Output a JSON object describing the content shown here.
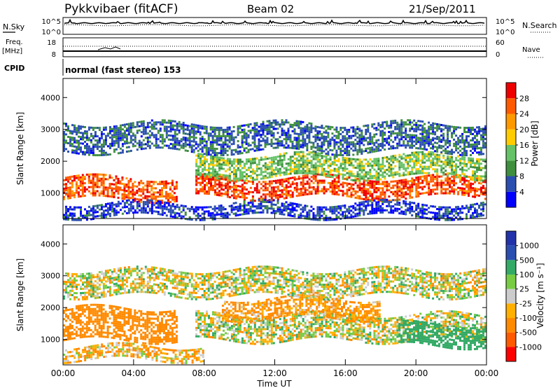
{
  "header": {
    "station": "Pykkvibaer (fitACF)",
    "beam": "Beam 02",
    "date": "21/Sep/2011"
  },
  "nsky_panel": {
    "left_label": "N.Sky",
    "right_label": "N.Search",
    "ticks": [
      "10^5",
      "10^0"
    ]
  },
  "freq_panel": {
    "left_label_1": "Freq.",
    "left_label_2": "[MHz]",
    "left_ticks": [
      "18",
      "8"
    ],
    "right_ticks": [
      "60",
      "0"
    ],
    "right_label": "Nave"
  },
  "cpid_panel": {
    "label": "CPID",
    "text": "normal (fast stereo) 153"
  },
  "colors": {
    "power_scale": [
      "#0000ff",
      "#2b4fb0",
      "#3f8f3f",
      "#66c266",
      "#ffcc00",
      "#ff9900",
      "#ff5a00",
      "#ee0000"
    ],
    "velocity_scale": [
      "#ff0000",
      "#ff5a00",
      "#ff8a00",
      "#ffb000",
      "#cccccc",
      "#77cc44",
      "#33aa66",
      "#2b4fb0",
      "#2233aa"
    ]
  },
  "chart_data": [
    {
      "type": "heatmap",
      "title": "",
      "xlabel": "Time UT",
      "ylabel": "Slant Range [km]",
      "x_ticks": [
        "00:00",
        "04:00",
        "08:00",
        "12:00",
        "16:00",
        "20:00",
        "00:00"
      ],
      "y_ticks": [
        1000,
        2000,
        3000,
        4000
      ],
      "ylim": [
        200,
        4600
      ],
      "colorbar": {
        "label": "Power [dB]",
        "ticks": [
          4,
          8,
          12,
          16,
          20,
          24,
          28
        ],
        "range": [
          0,
          32
        ]
      },
      "bands": [
        {
          "t": [
            0,
            6.5
          ],
          "range": [
            800,
            1500
          ],
          "value": 26
        },
        {
          "t": [
            7.5,
            24
          ],
          "range": [
            900,
            1500
          ],
          "value": 27
        },
        {
          "t": [
            7.5,
            24
          ],
          "range": [
            1500,
            2200
          ],
          "value": 14
        },
        {
          "t": [
            0,
            24
          ],
          "range": [
            2300,
            3200
          ],
          "value": 7
        },
        {
          "t": [
            0,
            24
          ],
          "range": [
            300,
            700
          ],
          "value": 5
        }
      ]
    },
    {
      "type": "heatmap",
      "title": "",
      "xlabel": "Time UT",
      "ylabel": "Slant Range [km]",
      "x_ticks": [
        "00:00",
        "04:00",
        "08:00",
        "12:00",
        "16:00",
        "20:00",
        "00:00"
      ],
      "y_ticks": [
        1000,
        2000,
        3000,
        4000
      ],
      "ylim": [
        200,
        4600
      ],
      "colorbar": {
        "label": "Velocity [m s⁻¹]",
        "ticks": [
          1000,
          500,
          100,
          25,
          -25,
          -100,
          -500,
          -1000
        ]
      },
      "bands": [
        {
          "t": [
            0,
            6.5
          ],
          "range": [
            1000,
            2000
          ],
          "value": -250
        },
        {
          "t": [
            7.5,
            24
          ],
          "range": [
            1000,
            1800
          ],
          "value": 0
        },
        {
          "t": [
            9,
            18
          ],
          "range": [
            1700,
            2300
          ],
          "value": -150
        },
        {
          "t": [
            19,
            24
          ],
          "range": [
            800,
            1500
          ],
          "value": 300
        },
        {
          "t": [
            0,
            24
          ],
          "range": [
            2400,
            3200
          ],
          "value": 0
        },
        {
          "t": [
            0,
            8
          ],
          "range": [
            400,
            800
          ],
          "value": -80
        }
      ]
    }
  ]
}
